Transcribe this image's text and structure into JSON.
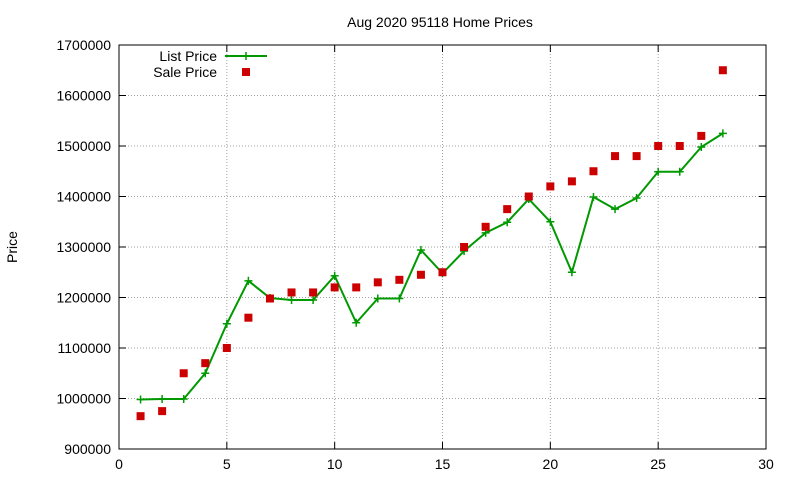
{
  "chart_data": {
    "type": "line",
    "title": "Aug 2020 95118 Home Prices",
    "xlabel": "",
    "ylabel": "Price",
    "xlim": [
      0,
      30
    ],
    "ylim": [
      900000,
      1700000
    ],
    "x_ticks": [
      0,
      5,
      10,
      15,
      20,
      25,
      30
    ],
    "y_ticks": [
      900000,
      1000000,
      1100000,
      1200000,
      1300000,
      1400000,
      1500000,
      1600000,
      1700000
    ],
    "grid": true,
    "legend_position": "top-left",
    "series": [
      {
        "name": "List Price",
        "style": "line-with-plus-markers",
        "color": "#009900",
        "x": [
          1,
          2,
          3,
          4,
          5,
          6,
          7,
          8,
          9,
          10,
          11,
          12,
          13,
          14,
          15,
          16,
          17,
          18,
          19,
          20,
          21,
          22,
          23,
          24,
          25,
          26,
          27,
          28
        ],
        "y": [
          998000,
          999000,
          999000,
          1050000,
          1148000,
          1233000,
          1199000,
          1195000,
          1195000,
          1243000,
          1150000,
          1198000,
          1198000,
          1294000,
          1248000,
          1292000,
          1328000,
          1349000,
          1395000,
          1350000,
          1250000,
          1399000,
          1375000,
          1397000,
          1449000,
          1449000,
          1498000,
          1525000
        ]
      },
      {
        "name": "Sale Price",
        "style": "square-markers",
        "color": "#cc0000",
        "x": [
          1,
          2,
          3,
          4,
          5,
          6,
          7,
          8,
          9,
          10,
          11,
          12,
          13,
          14,
          15,
          16,
          17,
          18,
          19,
          20,
          21,
          22,
          23,
          24,
          25,
          26,
          27,
          28
        ],
        "y": [
          965000,
          975000,
          1050000,
          1070000,
          1100000,
          1160000,
          1198000,
          1210000,
          1210000,
          1220000,
          1220000,
          1230000,
          1235000,
          1245000,
          1250000,
          1300000,
          1340000,
          1375000,
          1400000,
          1420000,
          1430000,
          1450000,
          1480000,
          1480000,
          1500000,
          1500000,
          1520000,
          1650000
        ]
      }
    ]
  }
}
